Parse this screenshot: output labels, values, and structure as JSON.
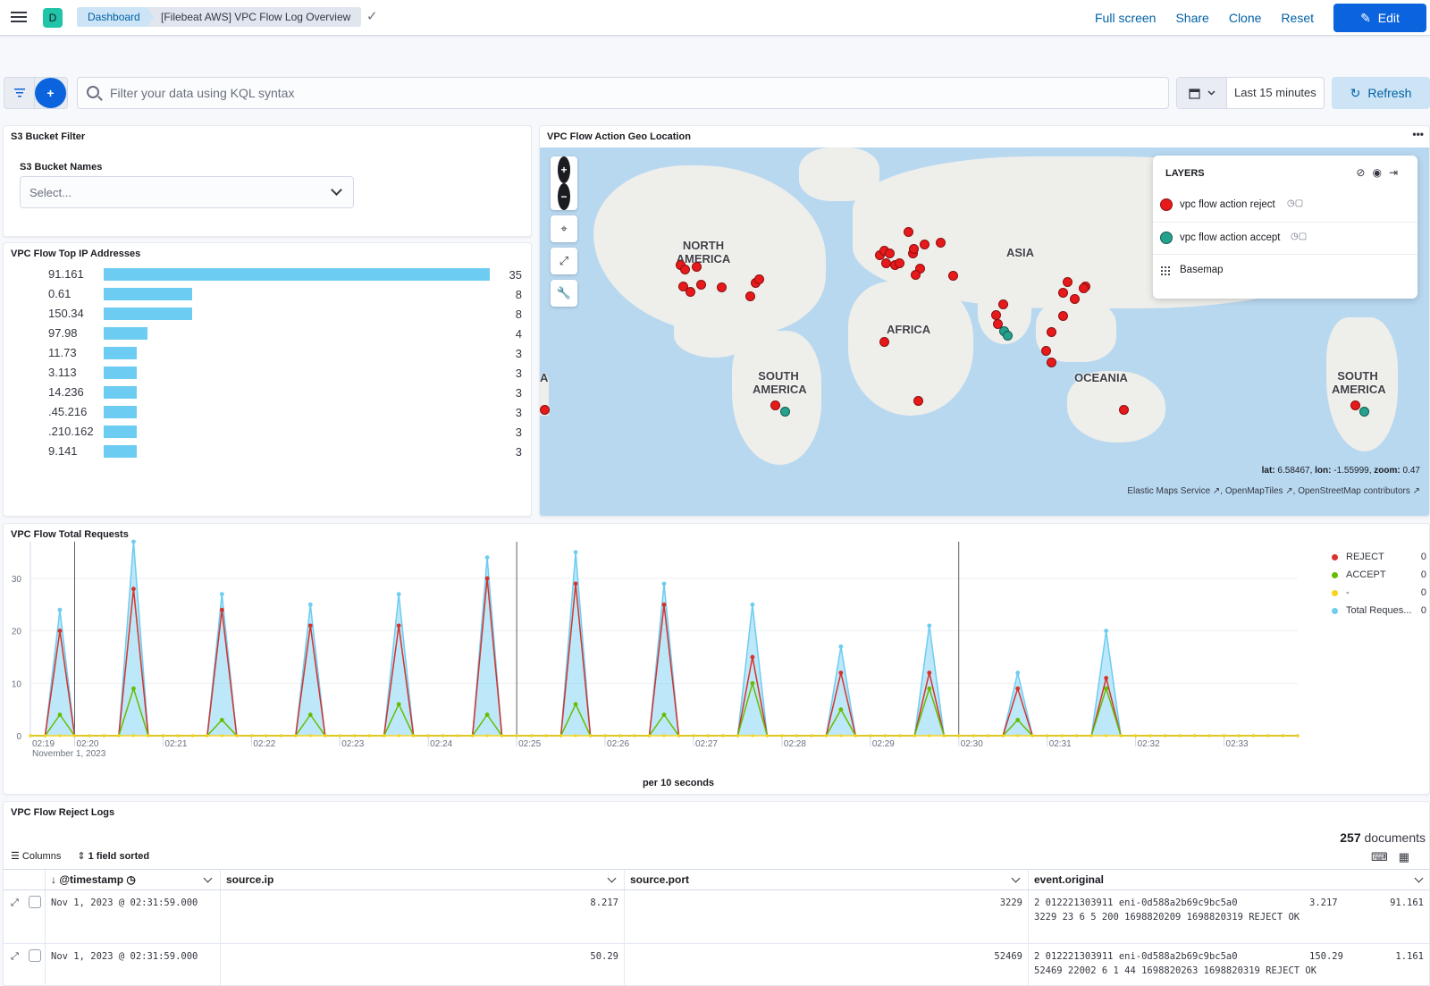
{
  "header": {
    "space_initial": "D",
    "breadcrumbs": [
      "Dashboard",
      "[Filebeat AWS] VPC Flow Log Overview"
    ],
    "actions": [
      "Full screen",
      "Share",
      "Clone",
      "Reset"
    ],
    "edit_label": "Edit"
  },
  "query": {
    "placeholder": "Filter your data using KQL syntax",
    "time_range": "Last 15 minutes",
    "refresh_label": "Refresh"
  },
  "s3_panel": {
    "title": "S3 Bucket Filter",
    "field_label": "S3 Bucket Names",
    "select_placeholder": "Select..."
  },
  "ip_panel": {
    "title": "VPC Flow Top IP Addresses",
    "rows": [
      {
        "label": "91.161",
        "value": 35
      },
      {
        "label": "0.61",
        "value": 8
      },
      {
        "label": "150.34",
        "value": 8
      },
      {
        "label": "97.98",
        "value": 4
      },
      {
        "label": "11.73",
        "value": 3
      },
      {
        "label": "3.113",
        "value": 3
      },
      {
        "label": "14.236",
        "value": 3
      },
      {
        "label": ".45.216",
        "value": 3
      },
      {
        "label": ".210.162",
        "value": 3
      },
      {
        "label": "9.141",
        "value": 3
      }
    ]
  },
  "map_panel": {
    "title": "VPC Flow Action Geo Location",
    "continents": [
      "NORTH AMERICA",
      "ASIA",
      "AFRICA",
      "SOUTH AMERICA",
      "OCEANIA",
      "SOUTH AMERICA",
      "A"
    ],
    "layers_title": "LAYERS",
    "layers": [
      {
        "name": "vpc flow action reject",
        "color": "#e7191b"
      },
      {
        "name": "vpc flow action accept",
        "color": "#25a28e"
      },
      {
        "name": "Basemap",
        "color": ""
      }
    ],
    "readout_lat_label": "lat:",
    "readout_lat": "6.58467,",
    "readout_lon_label": "lon:",
    "readout_lon": "-1.55999,",
    "readout_zoom_label": "zoom:",
    "readout_zoom": "0.47",
    "attribution": "Elastic Maps Service ↗, OpenMapTiles ↗, OpenStreetMap contributors ↗"
  },
  "requests_panel": {
    "title": "VPC Flow Total Requests",
    "footer": "per 10 seconds",
    "legend": [
      {
        "name": "REJECT",
        "value": "0",
        "color": "#d6332b"
      },
      {
        "name": "ACCEPT",
        "value": "0",
        "color": "#68bc00"
      },
      {
        "name": "-",
        "value": "0",
        "color": "#f5d419"
      },
      {
        "name": "Total Reques...",
        "value": "0",
        "color": "#6dccf1"
      }
    ]
  },
  "chart_data": {
    "type": "area",
    "title": "VPC Flow Total Requests",
    "xlabel": "per 10 seconds",
    "ylabel": "",
    "ylim": [
      0,
      37
    ],
    "y_ticks": [
      0,
      10,
      20,
      30
    ],
    "x_ticks": [
      "02:19",
      "02:20",
      "02:21",
      "02:22",
      "02:23",
      "02:24",
      "02:25",
      "02:26",
      "02:27",
      "02:28",
      "02:29",
      "02:30",
      "02:31",
      "02:32",
      "02:33"
    ],
    "x_first_sublabel": "November 1, 2023",
    "series": [
      {
        "name": "REJECT",
        "peaks": [
          20,
          28,
          24,
          21,
          21,
          30,
          29,
          25,
          15,
          12,
          12,
          9,
          11
        ]
      },
      {
        "name": "ACCEPT",
        "peaks": [
          4,
          9,
          3,
          4,
          6,
          4,
          6,
          4,
          10,
          5,
          9,
          3,
          9
        ]
      },
      {
        "name": "-",
        "peaks": [
          0,
          0,
          0,
          0,
          0,
          0,
          0,
          0,
          0,
          0,
          0,
          0,
          0
        ]
      },
      {
        "name": "Total Reques...",
        "peaks": [
          24,
          37,
          27,
          25,
          27,
          34,
          35,
          29,
          25,
          17,
          21,
          12,
          20
        ]
      }
    ],
    "peak_times": [
      "02:19:50",
      "02:20:40",
      "02:21:40",
      "02:22:40",
      "02:23:40",
      "02:24:40",
      "02:25:40",
      "02:26:40",
      "02:27:40",
      "02:28:40",
      "02:29:40",
      "02:30:40",
      "02:31:40"
    ]
  },
  "logs_panel": {
    "title": "VPC Flow Reject Logs",
    "doc_count": "257",
    "doc_label": "documents",
    "columns_label": "Columns",
    "sorted_label": "1 field sorted",
    "headers": [
      "@timestamp",
      "source.ip",
      "source.port",
      "event.original"
    ],
    "rows": [
      {
        "timestamp": "Nov 1, 2023 @ 02:31:59.000",
        "source_ip": "8.217",
        "source_port": "3229",
        "orig_a": "2 012221303911 eni-0d588a2b69c9bc5a0",
        "orig_b": "3.217",
        "orig_c": "91.161",
        "orig_line2": "3229 23 6 5 200 1698820209 1698820319 REJECT OK"
      },
      {
        "timestamp": "Nov 1, 2023 @ 02:31:59.000",
        "source_ip": "50.29",
        "source_port": "52469",
        "orig_a": "2 012221303911 eni-0d588a2b69c9bc5a0",
        "orig_b": "150.29",
        "orig_c": "1.161",
        "orig_line2": "52469 22002 6 1 44 1698820263 1698820319 REJECT OK"
      }
    ]
  }
}
